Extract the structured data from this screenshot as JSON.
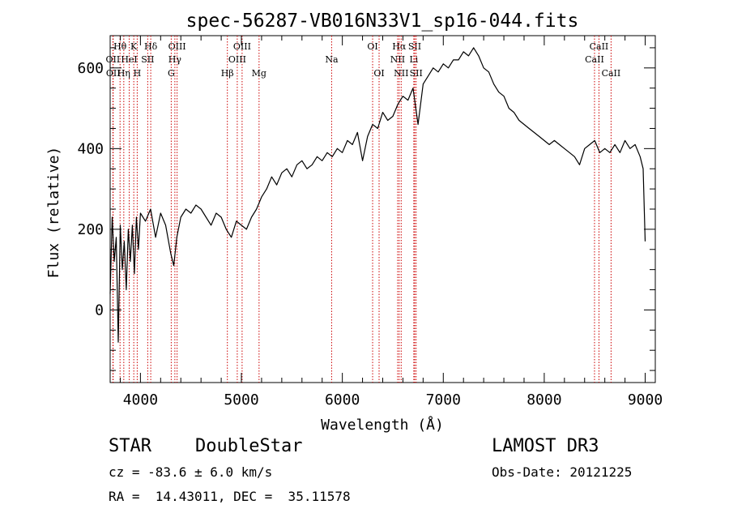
{
  "chart_data": {
    "type": "line",
    "title": "spec-56287-VB016N33V1_sp16-044.fits",
    "xlabel": "Wavelength (Å)",
    "ylabel": "Flux (relative)",
    "xlim": [
      3700,
      9100
    ],
    "ylim": [
      -180,
      680
    ],
    "xticks": [
      4000,
      5000,
      6000,
      7000,
      8000,
      9000
    ],
    "yticks": [
      0,
      200,
      400,
      600
    ],
    "xtick_labels": [
      "4000",
      "5000",
      "6000",
      "7000",
      "8000",
      "9000"
    ],
    "ytick_labels": [
      "0",
      "200",
      "400",
      "600"
    ],
    "grid": false,
    "line_color": "#000000",
    "marker_line_color": "#cc0000",
    "series": [
      {
        "x": [
          3700,
          3720,
          3740,
          3760,
          3780,
          3800,
          3820,
          3840,
          3860,
          3880,
          3900,
          3920,
          3940,
          3960,
          3980,
          4000,
          4050,
          4100,
          4150,
          4200,
          4250,
          4300,
          4330,
          4360,
          4400,
          4450,
          4500,
          4550,
          4600,
          4650,
          4700,
          4750,
          4800,
          4850,
          4900,
          4950,
          5000,
          5050,
          5100,
          5150,
          5200,
          5250,
          5300,
          5350,
          5400,
          5450,
          5500,
          5550,
          5600,
          5650,
          5700,
          5750,
          5800,
          5850,
          5900,
          5950,
          6000,
          6050,
          6100,
          6150,
          6200,
          6250,
          6300,
          6350,
          6400,
          6450,
          6500,
          6550,
          6600,
          6650,
          6700,
          6750,
          6800,
          6850,
          6900,
          6950,
          7000,
          7050,
          7100,
          7150,
          7200,
          7250,
          7300,
          7350,
          7400,
          7450,
          7500,
          7550,
          7600,
          7650,
          7700,
          7750,
          7800,
          7850,
          7900,
          7950,
          8000,
          8050,
          8100,
          8150,
          8200,
          8250,
          8300,
          8350,
          8400,
          8450,
          8500,
          8550,
          8600,
          8650,
          8700,
          8750,
          8800,
          8850,
          8900,
          8950,
          8980,
          9000
        ],
        "y": [
          40,
          230,
          120,
          180,
          -80,
          210,
          100,
          170,
          50,
          200,
          120,
          210,
          90,
          230,
          150,
          240,
          220,
          250,
          180,
          240,
          210,
          140,
          110,
          180,
          230,
          250,
          240,
          260,
          250,
          230,
          210,
          240,
          230,
          200,
          180,
          220,
          210,
          200,
          230,
          250,
          280,
          300,
          330,
          310,
          340,
          350,
          330,
          360,
          370,
          350,
          360,
          380,
          370,
          390,
          380,
          400,
          390,
          420,
          410,
          440,
          370,
          430,
          460,
          450,
          490,
          470,
          480,
          510,
          530,
          520,
          550,
          460,
          560,
          580,
          600,
          590,
          610,
          600,
          620,
          620,
          640,
          630,
          650,
          630,
          600,
          590,
          560,
          540,
          530,
          500,
          490,
          470,
          460,
          450,
          440,
          430,
          420,
          410,
          420,
          410,
          400,
          390,
          380,
          360,
          400,
          410,
          420,
          390,
          400,
          390,
          410,
          390,
          420,
          400,
          410,
          380,
          350,
          170
        ]
      }
    ],
    "line_markers": [
      {
        "label": "Hθ",
        "x": 3798,
        "row": 1
      },
      {
        "label": "OII",
        "x": 3727,
        "row": 2
      },
      {
        "label": "OII",
        "x": 3730,
        "row": 3
      },
      {
        "label": "K",
        "x": 3934,
        "row": 1
      },
      {
        "label": "HeI",
        "x": 3889,
        "row": 2
      },
      {
        "label": "Hη",
        "x": 3835,
        "row": 3
      },
      {
        "label": "Hδ",
        "x": 4102,
        "row": 1
      },
      {
        "label": "SII",
        "x": 4072,
        "row": 2
      },
      {
        "label": "H",
        "x": 3968,
        "row": 3
      },
      {
        "label": "OIII",
        "x": 4363,
        "row": 1
      },
      {
        "label": "Hγ",
        "x": 4341,
        "row": 2
      },
      {
        "label": "G",
        "x": 4305,
        "row": 3
      },
      {
        "label": "Hβ",
        "x": 4861,
        "row": 3
      },
      {
        "label": "OIII",
        "x": 5007,
        "row": 1
      },
      {
        "label": "OIII",
        "x": 4959,
        "row": 2
      },
      {
        "label": "Mg",
        "x": 5175,
        "row": 3
      },
      {
        "label": "Na",
        "x": 5894,
        "row": 2
      },
      {
        "label": "OI",
        "x": 6300,
        "row": 1
      },
      {
        "label": "OI",
        "x": 6364,
        "row": 3
      },
      {
        "label": "Hα",
        "x": 6563,
        "row": 1
      },
      {
        "label": "NII",
        "x": 6548,
        "row": 2
      },
      {
        "label": "NII",
        "x": 6583,
        "row": 3
      },
      {
        "label": "SII",
        "x": 6717,
        "row": 1
      },
      {
        "label": "Li",
        "x": 6708,
        "row": 2
      },
      {
        "label": "SII",
        "x": 6731,
        "row": 3
      },
      {
        "label": "CaII",
        "x": 8542,
        "row": 1
      },
      {
        "label": "CaII",
        "x": 8498,
        "row": 2
      },
      {
        "label": "CaII",
        "x": 8662,
        "row": 3
      }
    ]
  },
  "info": {
    "object_class": "STAR",
    "subclass": "DoubleStar",
    "survey": "LAMOST DR3",
    "cz": "cz = -83.6 ± 6.0 km/s",
    "obs_date": "Obs-Date: 20121225",
    "coords": "RA =  14.43011, DEC =  35.11578"
  }
}
